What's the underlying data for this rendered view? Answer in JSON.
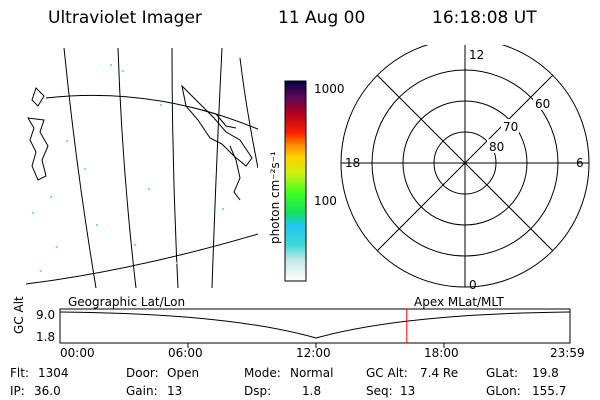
{
  "header": {
    "instrument": "Ultraviolet Imager",
    "date": "11 Aug 00",
    "time": "16:18:08 UT"
  },
  "colorbar": {
    "unit_label": "photon cm⁻²s⁻¹",
    "tick_1000": "1000",
    "tick_100": "100"
  },
  "polar": {
    "mlt_top": "12",
    "mlt_left": "18",
    "mlt_right": "6",
    "mlt_bottom": "0",
    "lat_60": "60",
    "lat_70": "70",
    "lat_80": "80"
  },
  "timeline": {
    "left_title": "Geographic Lat/Lon",
    "right_title": "Apex MLat/MLT",
    "ylabel": "GC Alt",
    "y_top": "9.0",
    "y_bottom": "1.8",
    "x_ticks": [
      "00:00",
      "06:00",
      "12:00",
      "18:00",
      "23:59"
    ],
    "marker_color": "#ff0000",
    "current_time_fraction": 0.68
  },
  "info": {
    "flt_label": "Flt:",
    "flt_value": "1304",
    "ip_label": "IP:",
    "ip_value": "36.0",
    "door_label": "Door:",
    "door_value": "Open",
    "gain_label": "Gain:",
    "gain_value": "13",
    "mode_label": "Mode:",
    "mode_value": "Normal",
    "dsp_label": "Dsp:",
    "dsp_value": "1.8",
    "gcalt_label": "GC Alt:",
    "gcalt_value": "7.4 Re",
    "seq_label": "Seq:",
    "seq_value": "13",
    "glat_label": "GLat:",
    "glat_value": "19.8",
    "glon_label": "GLon:",
    "glon_value": "155.7"
  }
}
